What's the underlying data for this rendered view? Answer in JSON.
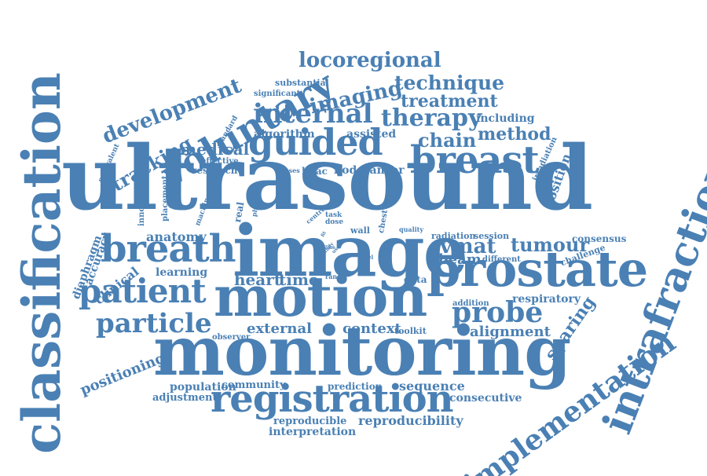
{
  "color": "#4a80b4",
  "words": [
    {
      "text": "ultrasound"
    },
    {
      "text": "monitoring"
    },
    {
      "text": "image"
    },
    {
      "text": "motion"
    },
    {
      "text": "prostate"
    },
    {
      "text": "classification"
    },
    {
      "text": "intrafraction"
    },
    {
      "text": "implementation"
    },
    {
      "text": "guided"
    },
    {
      "text": "breast"
    },
    {
      "text": "breath"
    },
    {
      "text": "registration"
    },
    {
      "text": "voluntary"
    },
    {
      "text": "patient"
    },
    {
      "text": "particle"
    },
    {
      "text": "probe"
    },
    {
      "text": "internal"
    },
    {
      "text": "vmat"
    },
    {
      "text": "tumour"
    },
    {
      "text": "therapy"
    },
    {
      "text": "development"
    },
    {
      "text": "locoregional"
    },
    {
      "text": "imaging"
    },
    {
      "text": "technique"
    },
    {
      "text": "treatment"
    },
    {
      "text": "tracking"
    },
    {
      "text": "chain"
    },
    {
      "text": "method"
    },
    {
      "text": "medical"
    },
    {
      "text": "sparing"
    },
    {
      "text": "position"
    },
    {
      "text": "heart"
    },
    {
      "text": "time"
    },
    {
      "text": "positioning"
    },
    {
      "text": "external"
    },
    {
      "text": "context"
    },
    {
      "text": "alignment"
    },
    {
      "text": "beam"
    },
    {
      "text": "reproducibility"
    },
    {
      "text": "sequence"
    },
    {
      "text": "consecutive"
    },
    {
      "text": "respiratory"
    },
    {
      "text": "clinical"
    },
    {
      "text": "accuracy"
    },
    {
      "text": "diaphragm"
    },
    {
      "text": "anatomy"
    },
    {
      "text": "learning"
    },
    {
      "text": "population"
    },
    {
      "text": "community"
    },
    {
      "text": "adjustment"
    },
    {
      "text": "prediction"
    },
    {
      "text": "reproducible"
    },
    {
      "text": "interpretation"
    },
    {
      "text": "including"
    },
    {
      "text": "algorithm"
    },
    {
      "text": "assisted"
    },
    {
      "text": "research"
    },
    {
      "text": "linac"
    },
    {
      "text": "node"
    },
    {
      "text": "cancer"
    },
    {
      "text": "effective"
    },
    {
      "text": "significant"
    },
    {
      "text": "substantial"
    },
    {
      "text": "standard"
    },
    {
      "text": "equivalent"
    },
    {
      "text": "innovation"
    },
    {
      "text": "placement"
    },
    {
      "text": "machine"
    },
    {
      "text": "real"
    },
    {
      "text": "photon"
    },
    {
      "text": "centre"
    },
    {
      "text": "task"
    },
    {
      "text": "dose"
    },
    {
      "text": "wall"
    },
    {
      "text": "chest"
    },
    {
      "text": "quality"
    },
    {
      "text": "radiation"
    },
    {
      "text": "session"
    },
    {
      "text": "consensus"
    },
    {
      "text": "challenge"
    },
    {
      "text": "different"
    },
    {
      "text": "label"
    },
    {
      "text": "range"
    },
    {
      "text": "data"
    },
    {
      "text": "addition"
    },
    {
      "text": "toolkit"
    },
    {
      "text": "observer"
    },
    {
      "text": "irradiation"
    },
    {
      "text": "classes"
    },
    {
      "text": "study"
    },
    {
      "text": "fit"
    },
    {
      "text": "line"
    },
    {
      "text": "use"
    }
  ]
}
